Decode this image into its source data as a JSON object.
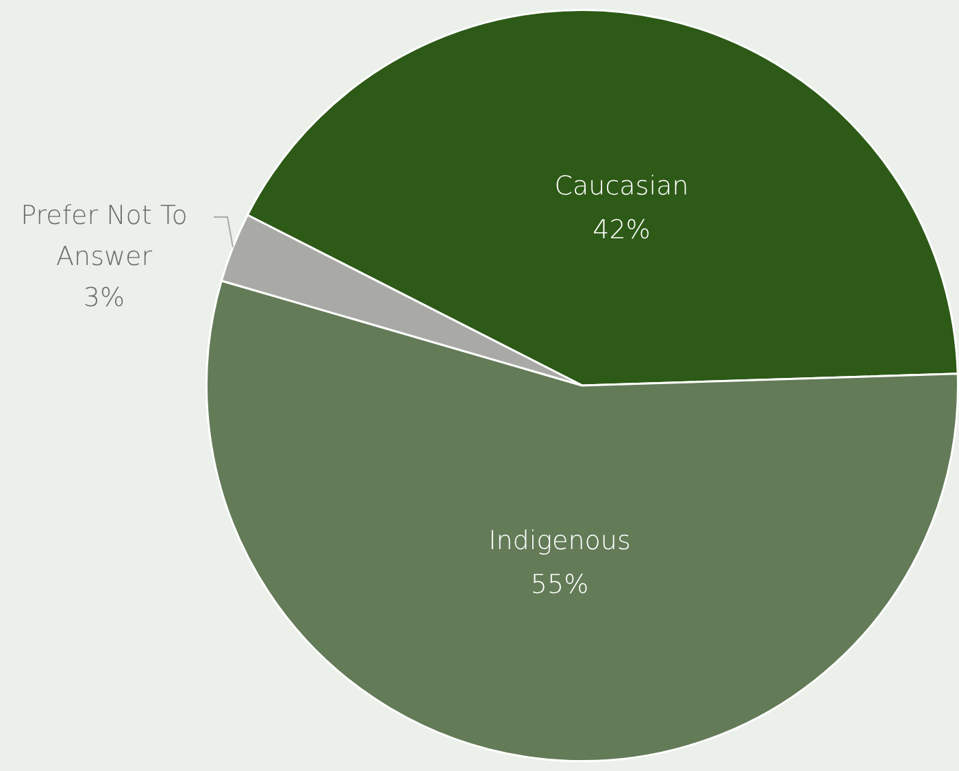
{
  "chart_data": {
    "type": "pie",
    "categories": [
      "Caucasian",
      "Indigenous",
      "Prefer Not To Answer"
    ],
    "values": [
      42,
      55,
      3
    ],
    "value_labels": [
      "42%",
      "55%",
      "3%"
    ],
    "colors": [
      "#2d5a17",
      "#637b57",
      "#a9aaa6"
    ],
    "legend": false
  }
}
